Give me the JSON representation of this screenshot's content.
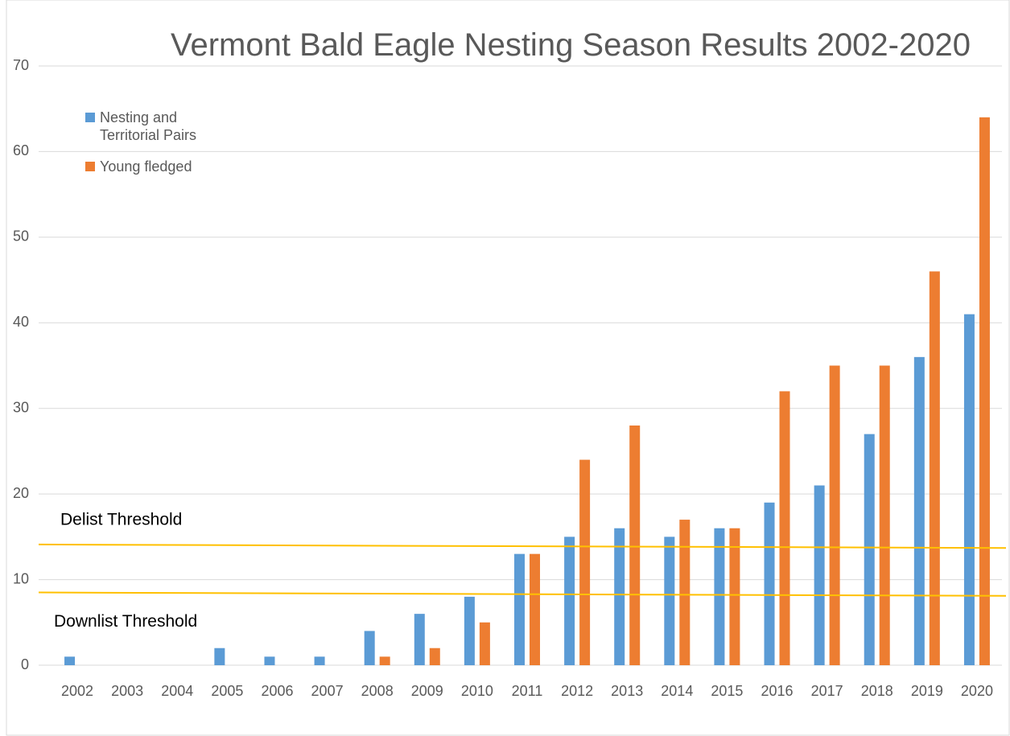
{
  "chart_data": {
    "type": "bar",
    "title": "Vermont Bald Eagle Nesting Season Results 2002-2020",
    "categories": [
      "2002",
      "2003",
      "2004",
      "2005",
      "2006",
      "2007",
      "2008",
      "2009",
      "2010",
      "2011",
      "2012",
      "2013",
      "2014",
      "2015",
      "2016",
      "2017",
      "2018",
      "2019",
      "2020"
    ],
    "series": [
      {
        "name": "Nesting and Territorial Pairs",
        "color": "#5b9bd5",
        "values": [
          1,
          0,
          0,
          2,
          1,
          1,
          4,
          6,
          8,
          13,
          15,
          16,
          15,
          16,
          19,
          21,
          27,
          36,
          41
        ]
      },
      {
        "name": "Young fledged",
        "color": "#ed7d31",
        "values": [
          0,
          0,
          0,
          0,
          0,
          0,
          1,
          2,
          5,
          13,
          24,
          28,
          17,
          16,
          32,
          35,
          35,
          46,
          64
        ]
      }
    ],
    "ylim": [
      0,
      70
    ],
    "yticks": [
      0,
      10,
      20,
      30,
      40,
      50,
      60,
      70
    ],
    "grid": true,
    "legend": "top-left",
    "thresholds": [
      {
        "label": "Delist Threshold",
        "start": 14.1,
        "end": 13.7,
        "color": "#ffc000"
      },
      {
        "label": "Downlist Threshold",
        "start": 8.5,
        "end": 8.1,
        "color": "#ffc000"
      }
    ]
  }
}
